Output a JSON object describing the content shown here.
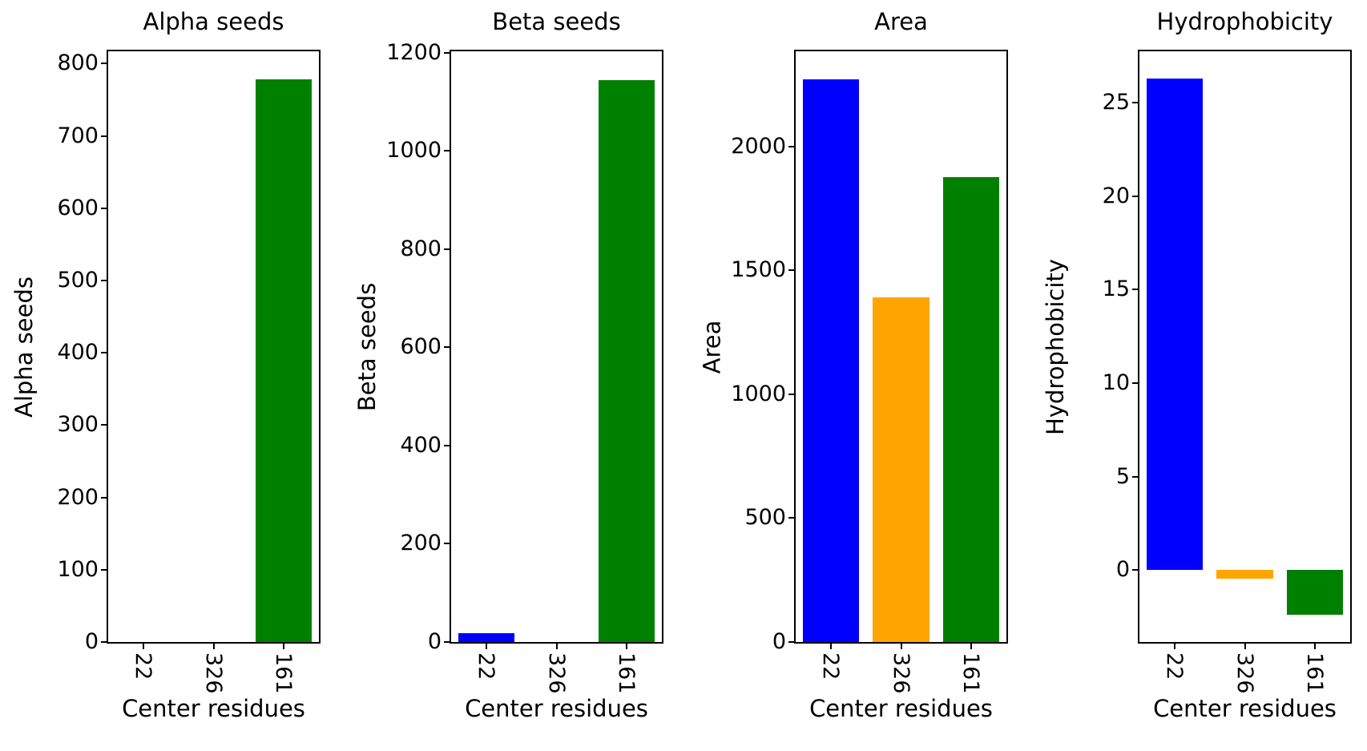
{
  "figure": {
    "background": "#ffffff",
    "bar_colors": [
      "#0000ff",
      "#ffa500",
      "#008000"
    ],
    "categories": [
      "22",
      "326",
      "161"
    ],
    "xlabel": "Center residues"
  },
  "chart_data": [
    {
      "type": "bar",
      "title": "Alpha seeds",
      "ylabel": "Alpha seeds",
      "xlabel": "Center residues",
      "categories": [
        "22",
        "326",
        "161"
      ],
      "values": [
        0,
        0,
        778
      ],
      "colors": [
        "#0000ff",
        "#ffa500",
        "#008000"
      ],
      "ylim": [
        0,
        817
      ],
      "yticks": [
        0,
        100,
        200,
        300,
        400,
        500,
        600,
        700,
        800
      ],
      "grid": false,
      "bar_width": 0.8
    },
    {
      "type": "bar",
      "title": "Beta seeds",
      "ylabel": "Beta seeds",
      "xlabel": "Center residues",
      "categories": [
        "22",
        "326",
        "161"
      ],
      "values": [
        18,
        0,
        1145
      ],
      "colors": [
        "#0000ff",
        "#ffa500",
        "#008000"
      ],
      "ylim": [
        0,
        1203
      ],
      "yticks": [
        0,
        200,
        400,
        600,
        800,
        1000,
        1200
      ],
      "grid": false,
      "bar_width": 0.8
    },
    {
      "type": "bar",
      "title": "Area",
      "ylabel": "Area",
      "xlabel": "Center residues",
      "categories": [
        "22",
        "326",
        "161"
      ],
      "values": [
        2270,
        1390,
        1875
      ],
      "colors": [
        "#0000ff",
        "#ffa500",
        "#008000"
      ],
      "ylim": [
        0,
        2384
      ],
      "yticks": [
        0,
        500,
        1000,
        1500,
        2000
      ],
      "grid": false,
      "bar_width": 0.8
    },
    {
      "type": "bar",
      "title": "Hydrophobicity",
      "ylabel": "Hydrophobicity",
      "xlabel": "Center residues",
      "categories": [
        "22",
        "326",
        "161"
      ],
      "values": [
        26.3,
        -0.45,
        -2.4
      ],
      "colors": [
        "#0000ff",
        "#ffa500",
        "#008000"
      ],
      "ylim": [
        -3.84,
        27.74
      ],
      "yticks": [
        0,
        5,
        10,
        15,
        20,
        25
      ],
      "grid": false,
      "bar_width": 0.8
    }
  ]
}
